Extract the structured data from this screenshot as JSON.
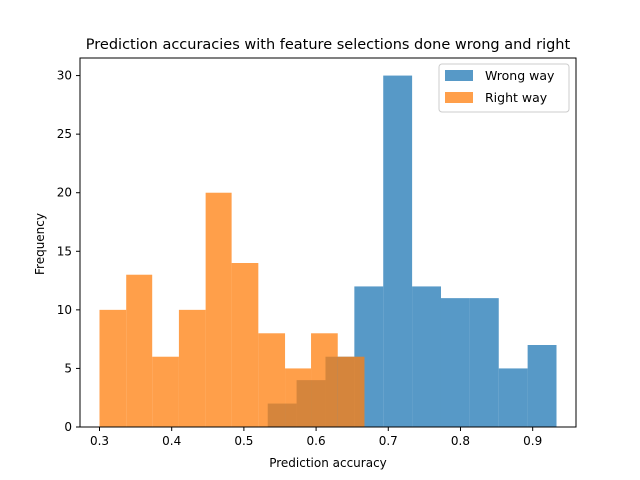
{
  "chart_data": {
    "type": "bar",
    "title": "Prediction accuracies with feature selections done wrong and right",
    "xlabel": "Prediction accuracy",
    "ylabel": "Frequency",
    "xlim": [
      0.273,
      0.96
    ],
    "ylim": [
      0,
      31.5
    ],
    "xticks": [
      0.3,
      0.4,
      0.5,
      0.6,
      0.7,
      0.8,
      0.9
    ],
    "xtick_labels": [
      "0.3",
      "0.4",
      "0.5",
      "0.6",
      "0.7",
      "0.8",
      "0.9"
    ],
    "yticks": [
      0,
      5,
      10,
      15,
      20,
      25,
      30
    ],
    "ytick_labels": [
      "0",
      "5",
      "10",
      "15",
      "20",
      "25",
      "30"
    ],
    "legend_position": "top-right",
    "series": [
      {
        "name": "Wrong way",
        "color": "#1f77b4",
        "bin_edges": [
          0.533,
          0.573,
          0.613,
          0.653,
          0.693,
          0.733,
          0.773,
          0.813,
          0.853,
          0.893,
          0.933
        ],
        "values": [
          2,
          4,
          6,
          12,
          30,
          12,
          11,
          11,
          5,
          7
        ]
      },
      {
        "name": "Right way",
        "color": "#ff7f0e",
        "bin_edges": [
          0.3,
          0.337,
          0.373,
          0.41,
          0.447,
          0.483,
          0.52,
          0.557,
          0.593,
          0.63,
          0.667
        ],
        "values": [
          10,
          13,
          6,
          10,
          20,
          14,
          8,
          5,
          8,
          6
        ]
      }
    ],
    "opacity": 0.75
  }
}
